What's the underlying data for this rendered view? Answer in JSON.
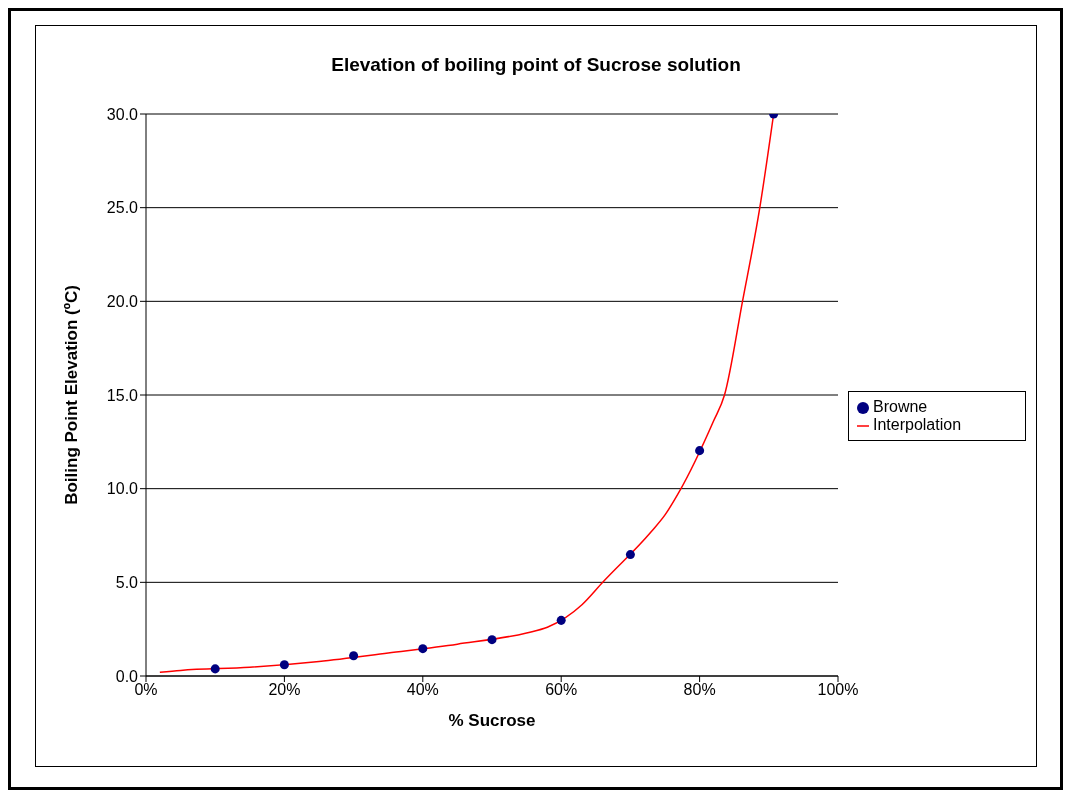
{
  "chart_data": {
    "type": "scatter",
    "title": "Elevation of boiling point of Sucrose solution",
    "xlabel": "% Sucrose",
    "ylabel": "Boiling Point Elevation (ºC)",
    "series": [
      {
        "name": "Browne",
        "color": "#000080",
        "marker": "circle",
        "x": [
          0.1,
          0.2,
          0.3,
          0.4,
          0.5,
          0.6,
          0.7,
          0.8,
          0.907
        ],
        "values": [
          0.38,
          0.6,
          1.08,
          1.46,
          1.94,
          2.97,
          6.48,
          12.03,
          30
        ]
      },
      {
        "name": "Interpolation",
        "type": "line",
        "color": "#ff0000",
        "marker": "none",
        "x": [
          0.02,
          0.05,
          0.15,
          0.25,
          0.35,
          0.45,
          0.55,
          0.58,
          0.63,
          0.66,
          0.73,
          0.75,
          0.77,
          0.82,
          0.836,
          0.862,
          0.887,
          0.907
        ],
        "values": [
          0.2,
          0.3,
          0.47,
          0.78,
          1.23,
          1.7,
          2.3,
          2.6,
          3.8,
          5.0,
          7.7,
          8.6,
          9.8,
          13.6,
          15.0,
          20.0,
          25.0,
          30.0
        ]
      }
    ],
    "xlim": [
      0,
      1
    ],
    "xticks": [
      {
        "value": 0,
        "label": "0%"
      },
      {
        "value": 0.2,
        "label": "20%"
      },
      {
        "value": 0.4,
        "label": "40%"
      },
      {
        "value": 0.6,
        "label": "60%"
      },
      {
        "value": 0.8,
        "label": "80%"
      },
      {
        "value": 1,
        "label": "100%"
      }
    ],
    "ylim": [
      0,
      30
    ],
    "yticks": [
      {
        "value": 0,
        "label": "0.0"
      },
      {
        "value": 5,
        "label": "5.0"
      },
      {
        "value": 10,
        "label": "10.0"
      },
      {
        "value": 15,
        "label": "15.0"
      },
      {
        "value": 20,
        "label": "20.0"
      },
      {
        "value": 25,
        "label": "25.0"
      },
      {
        "value": 30,
        "label": "30.0"
      }
    ],
    "grid": "y",
    "legend": "right"
  }
}
